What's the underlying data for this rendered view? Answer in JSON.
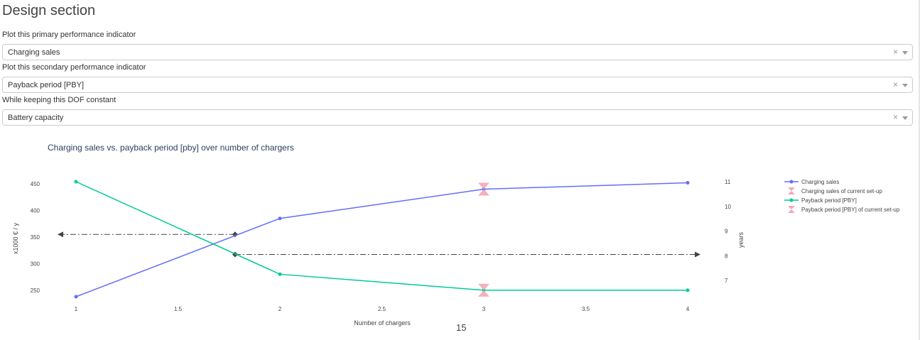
{
  "page": {
    "title": "Design section",
    "page_number": "15"
  },
  "controls": [
    {
      "label": "Plot this primary performance indicator",
      "value": "Charging sales",
      "clear": "×"
    },
    {
      "label": "Plot this secondary performance indicator",
      "value": "Payback period [PBY]",
      "clear": "×"
    },
    {
      "label": "While keeping this DOF constant",
      "value": "Battery capacity",
      "clear": "×"
    }
  ],
  "chart_data": {
    "type": "line",
    "title": "Charging sales vs. payback period [pby] over number of chargers",
    "xlabel": "Number of chargers",
    "ylabel": "x1000 € / y",
    "y2label": "years",
    "x_ticks": [
      "1",
      "1.5",
      "2",
      "2.5",
      "3",
      "3.5",
      "4"
    ],
    "y_ticks": [
      "250",
      "300",
      "350",
      "400",
      "450"
    ],
    "y2_ticks": [
      "7",
      "8",
      "9",
      "10",
      "11"
    ],
    "xlim": [
      0.95,
      4.05
    ],
    "ylim": [
      232,
      463
    ],
    "y2lim": [
      6.5,
      11.1
    ],
    "legend_position": "right",
    "colors": {
      "charging_sales": "#636efa",
      "payback": "#00cc96",
      "current": "#f4a6b7",
      "guide": "#444444"
    },
    "series": [
      {
        "name": "Charging sales",
        "axis": "left",
        "x": [
          1,
          2,
          3,
          4
        ],
        "values": [
          238,
          385,
          440,
          452
        ]
      },
      {
        "name": "Charging sales of current set-up",
        "axis": "left",
        "marker": "hourglass",
        "x": [
          3
        ],
        "values": [
          440
        ]
      },
      {
        "name": "Payback period [PBY]",
        "axis": "right",
        "x": [
          1,
          2,
          3,
          4
        ],
        "values": [
          11.0,
          7.25,
          6.6,
          6.6
        ]
      },
      {
        "name": "Payback period [PBY] of current set-up",
        "axis": "right",
        "marker": "hourglass",
        "x": [
          3
        ],
        "values": [
          6.6
        ]
      }
    ],
    "annotations": [
      {
        "name": "intersection-left",
        "x": 1.78,
        "y": 355,
        "axis": "left",
        "direction": "left"
      },
      {
        "name": "intersection-right",
        "x": 1.78,
        "y": 8.05,
        "axis": "right",
        "direction": "right"
      }
    ]
  }
}
